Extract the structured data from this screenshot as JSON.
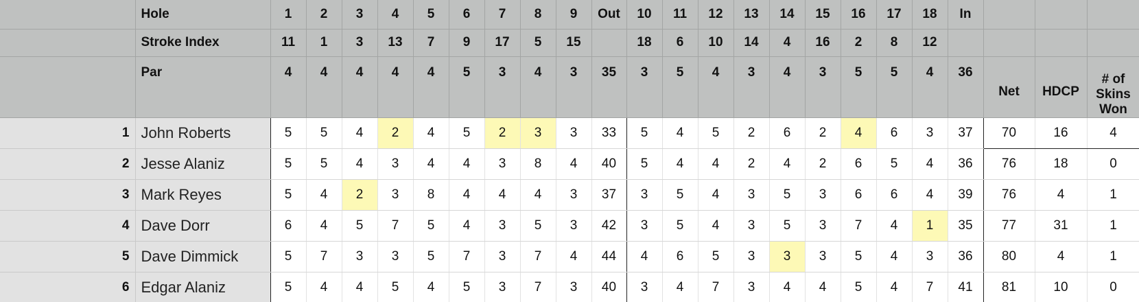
{
  "header": {
    "hole_label": "Hole",
    "stroke_index_label": "Stroke Index",
    "par_label": "Par",
    "holes_front": [
      "1",
      "2",
      "3",
      "4",
      "5",
      "6",
      "7",
      "8",
      "9"
    ],
    "out_label": "Out",
    "holes_back": [
      "10",
      "11",
      "12",
      "13",
      "14",
      "15",
      "16",
      "17",
      "18"
    ],
    "in_label": "In",
    "stroke_index_front": [
      "11",
      "1",
      "3",
      "13",
      "7",
      "9",
      "17",
      "5",
      "15"
    ],
    "stroke_index_back": [
      "18",
      "6",
      "10",
      "14",
      "4",
      "16",
      "2",
      "8",
      "12"
    ],
    "par_front": [
      "4",
      "4",
      "4",
      "4",
      "4",
      "5",
      "3",
      "4",
      "3"
    ],
    "par_out": "35",
    "par_back": [
      "3",
      "5",
      "4",
      "3",
      "4",
      "3",
      "5",
      "5",
      "4"
    ],
    "par_in": "36",
    "net_label": "Net",
    "hdcp_label": "HDCP",
    "skins_label": "# of Skins Won"
  },
  "players": [
    {
      "row": "1",
      "name": "John Roberts",
      "front": [
        "5",
        "5",
        "4",
        "2",
        "4",
        "5",
        "2",
        "3",
        "3"
      ],
      "out": "33",
      "back": [
        "5",
        "4",
        "5",
        "2",
        "6",
        "2",
        "4",
        "6",
        "3"
      ],
      "in": "37",
      "net": "70",
      "hdcp": "16",
      "skins": "4",
      "skin_holes": [
        4,
        7,
        8,
        16
      ]
    },
    {
      "row": "2",
      "name": "Jesse Alaniz",
      "front": [
        "5",
        "5",
        "4",
        "3",
        "4",
        "4",
        "3",
        "8",
        "4"
      ],
      "out": "40",
      "back": [
        "5",
        "4",
        "4",
        "2",
        "4",
        "2",
        "6",
        "5",
        "4"
      ],
      "in": "36",
      "net": "76",
      "hdcp": "18",
      "skins": "0",
      "skin_holes": []
    },
    {
      "row": "3",
      "name": "Mark Reyes",
      "front": [
        "5",
        "4",
        "2",
        "3",
        "8",
        "4",
        "4",
        "4",
        "3"
      ],
      "out": "37",
      "back": [
        "3",
        "5",
        "4",
        "3",
        "5",
        "3",
        "6",
        "6",
        "4"
      ],
      "in": "39",
      "net": "76",
      "hdcp": "4",
      "skins": "1",
      "skin_holes": [
        3
      ]
    },
    {
      "row": "4",
      "name": "Dave Dorr",
      "front": [
        "6",
        "4",
        "5",
        "7",
        "5",
        "4",
        "3",
        "5",
        "3"
      ],
      "out": "42",
      "back": [
        "3",
        "5",
        "4",
        "3",
        "5",
        "3",
        "7",
        "4",
        "1"
      ],
      "in": "35",
      "net": "77",
      "hdcp": "31",
      "skins": "1",
      "skin_holes": [
        18
      ]
    },
    {
      "row": "5",
      "name": "Dave Dimmick",
      "front": [
        "5",
        "7",
        "3",
        "3",
        "5",
        "7",
        "3",
        "7",
        "4"
      ],
      "out": "44",
      "back": [
        "4",
        "6",
        "5",
        "3",
        "3",
        "3",
        "5",
        "4",
        "3"
      ],
      "in": "36",
      "net": "80",
      "hdcp": "4",
      "skins": "1",
      "skin_holes": [
        14
      ]
    },
    {
      "row": "6",
      "name": "Edgar Alaniz",
      "front": [
        "5",
        "4",
        "4",
        "5",
        "4",
        "5",
        "3",
        "7",
        "3"
      ],
      "out": "40",
      "back": [
        "3",
        "4",
        "7",
        "3",
        "4",
        "4",
        "5",
        "4",
        "7"
      ],
      "in": "41",
      "net": "81",
      "hdcp": "10",
      "skins": "0",
      "skin_holes": []
    }
  ],
  "colors": {
    "header_bg": "#bfc1c0",
    "rowhead_bg": "#e2e2e2",
    "skin_highlight": "#fdf9b6"
  }
}
